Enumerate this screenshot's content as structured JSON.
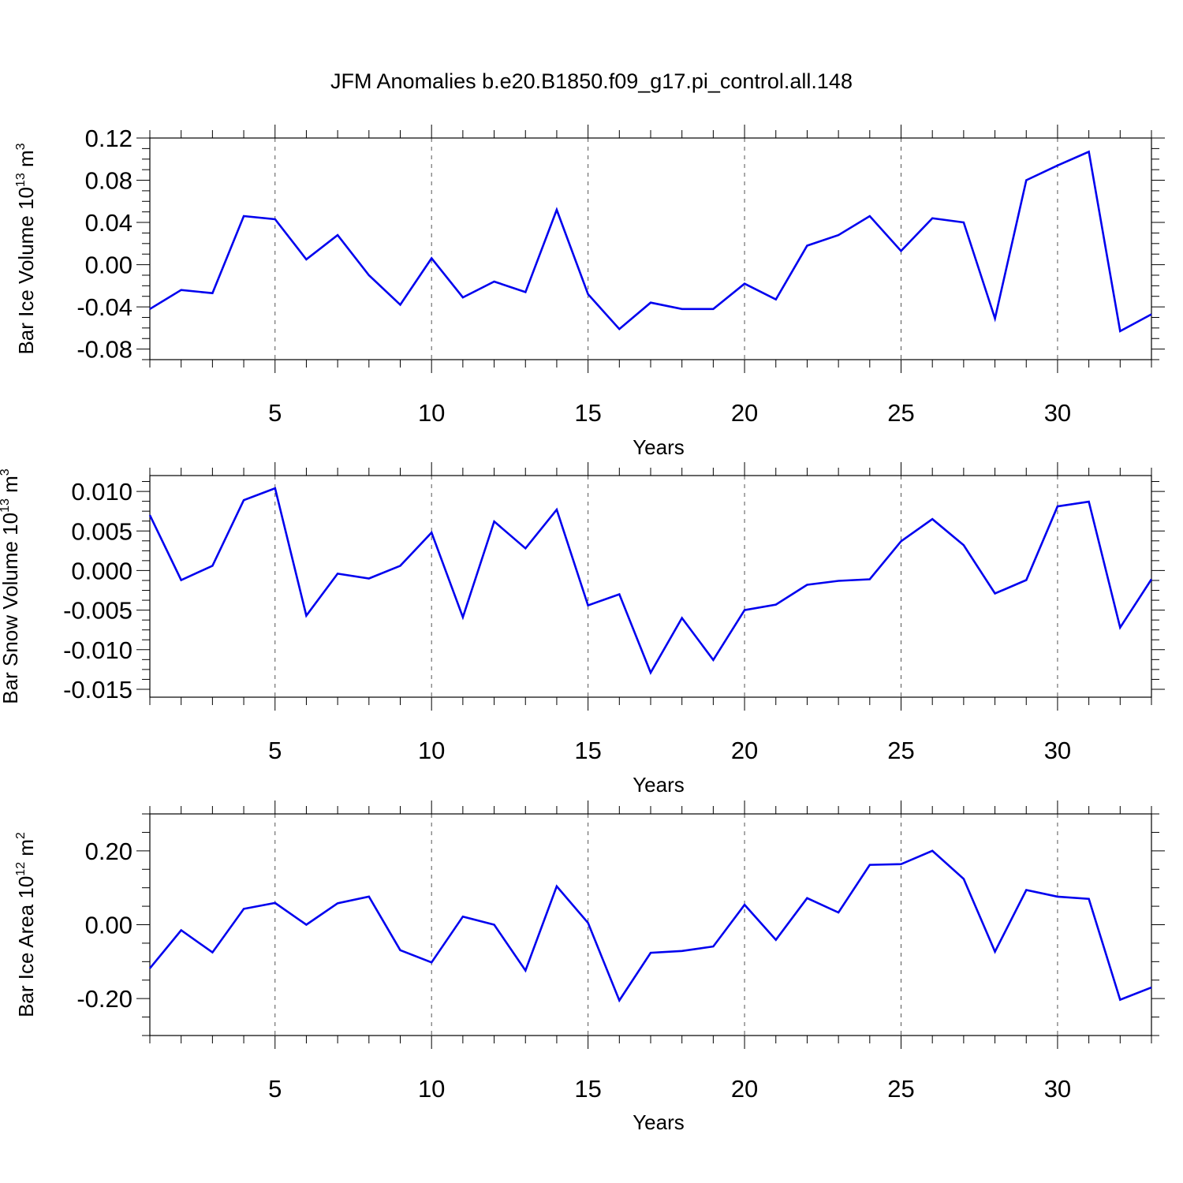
{
  "title": "JFM Anomalies b.e20.B1850.f09_g17.pi_control.all.148",
  "colors": {
    "line": "#0000ee",
    "axis": "#000000",
    "grid": "#555555"
  },
  "chart_data": [
    {
      "type": "line",
      "xlabel": "Years",
      "ylabel_text": "Bar Ice Volume 10",
      "ylabel_exp1": "13",
      "ylabel_unit": " m",
      "ylabel_exp2": "3",
      "xlim": [
        1,
        33
      ],
      "ylim": [
        -0.09,
        0.12
      ],
      "xticks": [
        5,
        10,
        15,
        20,
        25,
        30
      ],
      "xtick_labels": [
        "5",
        "10",
        "15",
        "20",
        "25",
        "30"
      ],
      "yticks": [
        -0.08,
        -0.04,
        0.0,
        0.04,
        0.08,
        0.12
      ],
      "ytick_labels": [
        "-0.08",
        "-0.04",
        "0.00",
        "0.04",
        "0.08",
        "0.12"
      ],
      "grid": "vertical dashed at major x ticks",
      "x": [
        1,
        2,
        3,
        4,
        5,
        6,
        7,
        8,
        9,
        10,
        11,
        12,
        13,
        14,
        15,
        16,
        17,
        18,
        19,
        20,
        21,
        22,
        23,
        24,
        25,
        26,
        27,
        28,
        29,
        30,
        31,
        32,
        33
      ],
      "values": [
        -0.042,
        -0.024,
        -0.027,
        0.046,
        0.043,
        0.005,
        0.028,
        -0.01,
        -0.038,
        0.006,
        -0.031,
        -0.016,
        -0.026,
        0.052,
        -0.028,
        -0.061,
        -0.036,
        -0.042,
        -0.042,
        -0.018,
        -0.033,
        0.018,
        0.028,
        0.046,
        0.013,
        0.044,
        0.04,
        -0.051,
        0.08,
        0.094,
        0.107,
        -0.063,
        -0.047
      ]
    },
    {
      "type": "line",
      "xlabel": "Years",
      "ylabel_text": "Bar Snow Volume 10",
      "ylabel_exp1": "13",
      "ylabel_unit": " m",
      "ylabel_exp2": "3",
      "xlim": [
        1,
        33
      ],
      "ylim": [
        -0.016,
        0.012
      ],
      "xticks": [
        5,
        10,
        15,
        20,
        25,
        30
      ],
      "xtick_labels": [
        "5",
        "10",
        "15",
        "20",
        "25",
        "30"
      ],
      "yticks": [
        -0.015,
        -0.01,
        -0.005,
        0.0,
        0.005,
        0.01
      ],
      "ytick_labels": [
        "-0.015",
        "-0.010",
        "-0.005",
        "0.000",
        "0.005",
        "0.010"
      ],
      "grid": "vertical dashed at major x ticks",
      "x": [
        1,
        2,
        3,
        4,
        5,
        6,
        7,
        8,
        9,
        10,
        11,
        12,
        13,
        14,
        15,
        16,
        17,
        18,
        19,
        20,
        21,
        22,
        23,
        24,
        25,
        26,
        27,
        28,
        29,
        30,
        31,
        32,
        33
      ],
      "values": [
        0.007,
        -0.0012,
        0.0006,
        0.0089,
        0.0104,
        -0.0057,
        -0.0004,
        -0.001,
        0.0006,
        0.0048,
        -0.0059,
        0.0062,
        0.0028,
        0.0077,
        -0.0044,
        -0.003,
        -0.0129,
        -0.006,
        -0.0113,
        -0.005,
        -0.0043,
        -0.0018,
        -0.0013,
        -0.0011,
        0.0037,
        0.0065,
        0.0032,
        -0.0029,
        -0.0012,
        0.0081,
        0.0087,
        -0.0072,
        -0.0011
      ]
    },
    {
      "type": "line",
      "xlabel": "Years",
      "ylabel_text": "Bar Ice Area 10",
      "ylabel_exp1": "12",
      "ylabel_unit": " m",
      "ylabel_exp2": "2",
      "xlim": [
        1,
        33
      ],
      "ylim": [
        -0.3,
        0.3
      ],
      "xticks": [
        5,
        10,
        15,
        20,
        25,
        30
      ],
      "xtick_labels": [
        "5",
        "10",
        "15",
        "20",
        "25",
        "30"
      ],
      "yticks": [
        -0.2,
        0.0,
        0.2
      ],
      "ytick_labels": [
        "-0.20",
        "0.00",
        "0.20"
      ],
      "grid": "vertical dashed at major x ticks",
      "x": [
        1,
        2,
        3,
        4,
        5,
        6,
        7,
        8,
        9,
        10,
        11,
        12,
        13,
        14,
        15,
        16,
        17,
        18,
        19,
        20,
        21,
        22,
        23,
        24,
        25,
        26,
        27,
        28,
        29,
        30,
        31,
        32,
        33
      ],
      "values": [
        -0.118,
        -0.015,
        -0.075,
        0.043,
        0.059,
        0.0,
        0.058,
        0.076,
        -0.069,
        -0.102,
        0.022,
        0.0,
        -0.124,
        0.104,
        0.005,
        -0.205,
        -0.076,
        -0.071,
        -0.059,
        0.054,
        -0.041,
        0.072,
        0.033,
        0.162,
        0.164,
        0.2,
        0.124,
        -0.073,
        0.094,
        0.076,
        0.07,
        -0.203,
        -0.17
      ]
    }
  ]
}
